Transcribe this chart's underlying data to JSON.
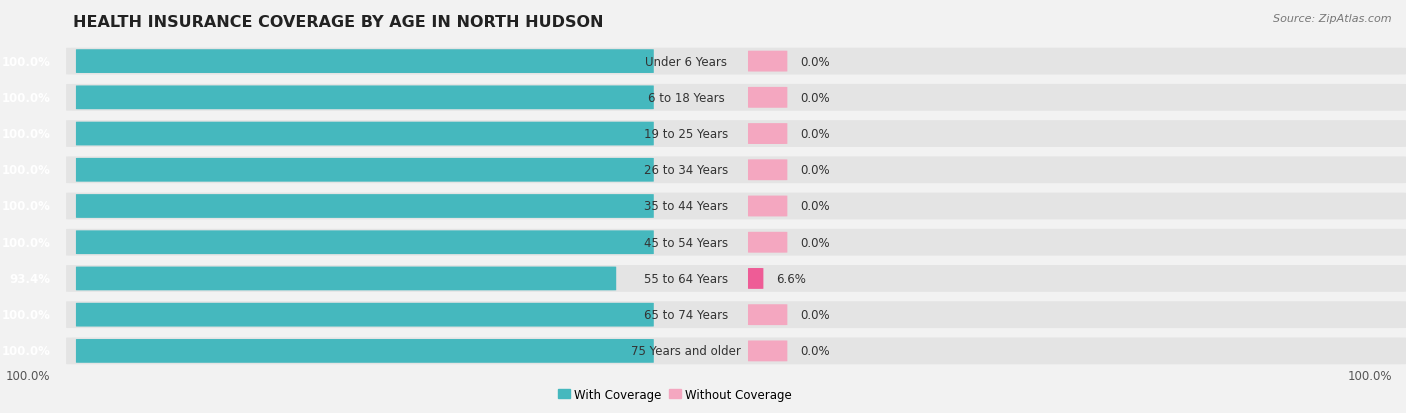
{
  "title": "HEALTH INSURANCE COVERAGE BY AGE IN NORTH HUDSON",
  "source": "Source: ZipAtlas.com",
  "categories": [
    "Under 6 Years",
    "6 to 18 Years",
    "19 to 25 Years",
    "26 to 34 Years",
    "35 to 44 Years",
    "45 to 54 Years",
    "55 to 64 Years",
    "65 to 74 Years",
    "75 Years and older"
  ],
  "with_coverage": [
    100.0,
    100.0,
    100.0,
    100.0,
    100.0,
    100.0,
    93.4,
    100.0,
    100.0
  ],
  "without_coverage": [
    0.0,
    0.0,
    0.0,
    0.0,
    0.0,
    0.0,
    6.6,
    0.0,
    0.0
  ],
  "color_with": "#45b8be",
  "color_without_light": "#f4a7c0",
  "color_without_strong": "#ee5c96",
  "color_bg_row": "#e4e4e4",
  "color_fig_bg": "#f2f2f2",
  "title_fontsize": 11.5,
  "bar_label_fontsize": 8.5,
  "cat_label_fontsize": 8.5,
  "source_fontsize": 8
}
